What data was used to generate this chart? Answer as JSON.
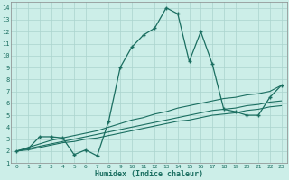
{
  "xlabel": "Humidex (Indice chaleur)",
  "bg_color": "#cceee8",
  "grid_color": "#aad4ce",
  "line_color": "#1a6e60",
  "x_data": [
    0,
    1,
    2,
    3,
    4,
    5,
    6,
    7,
    8,
    9,
    10,
    11,
    12,
    13,
    14,
    15,
    16,
    17,
    18,
    19,
    20,
    21,
    22,
    23
  ],
  "y_main": [
    2.0,
    2.2,
    3.2,
    3.2,
    3.1,
    1.7,
    2.1,
    1.6,
    4.5,
    9.0,
    10.7,
    11.7,
    12.3,
    14.0,
    13.5,
    9.5,
    12.0,
    9.3,
    5.5,
    5.3,
    5.0,
    5.0,
    6.5,
    7.5
  ],
  "y_line1": [
    2.0,
    2.1,
    2.3,
    2.5,
    2.7,
    2.8,
    3.0,
    3.1,
    3.3,
    3.5,
    3.7,
    3.9,
    4.1,
    4.3,
    4.5,
    4.6,
    4.8,
    5.0,
    5.1,
    5.2,
    5.4,
    5.5,
    5.7,
    5.8
  ],
  "y_line2": [
    2.0,
    2.2,
    2.4,
    2.6,
    2.8,
    3.0,
    3.2,
    3.4,
    3.6,
    3.8,
    4.0,
    4.2,
    4.4,
    4.6,
    4.8,
    5.0,
    5.2,
    5.4,
    5.5,
    5.6,
    5.8,
    5.9,
    6.1,
    6.2
  ],
  "y_line3": [
    2.0,
    2.3,
    2.6,
    2.9,
    3.1,
    3.3,
    3.5,
    3.7,
    4.0,
    4.3,
    4.6,
    4.8,
    5.1,
    5.3,
    5.6,
    5.8,
    6.0,
    6.2,
    6.4,
    6.5,
    6.7,
    6.8,
    7.0,
    7.5
  ],
  "xlim": [
    -0.5,
    23.5
  ],
  "ylim": [
    1,
    14.5
  ],
  "xticks": [
    0,
    1,
    2,
    3,
    4,
    5,
    6,
    7,
    8,
    9,
    10,
    11,
    12,
    13,
    14,
    15,
    16,
    17,
    18,
    19,
    20,
    21,
    22,
    23
  ],
  "yticks": [
    1,
    2,
    3,
    4,
    5,
    6,
    7,
    8,
    9,
    10,
    11,
    12,
    13,
    14
  ]
}
